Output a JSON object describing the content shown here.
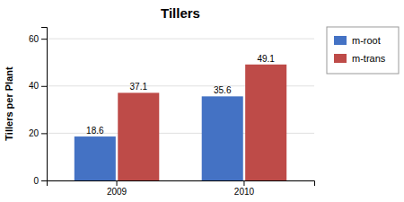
{
  "chart_data": {
    "type": "bar",
    "title": "Tillers",
    "ylabel": "Tillers per Plant",
    "categories": [
      "2009",
      "2010"
    ],
    "series": [
      {
        "name": "m-root",
        "color": "#4472C4",
        "values": [
          18.6,
          35.6
        ]
      },
      {
        "name": "m-trans",
        "color": "#BE4B48",
        "values": [
          37.1,
          49.1
        ]
      }
    ],
    "ylim": [
      0,
      65
    ],
    "yticks": [
      0,
      20,
      40,
      60
    ],
    "grid": true,
    "legend": "right",
    "data_labels": true
  }
}
